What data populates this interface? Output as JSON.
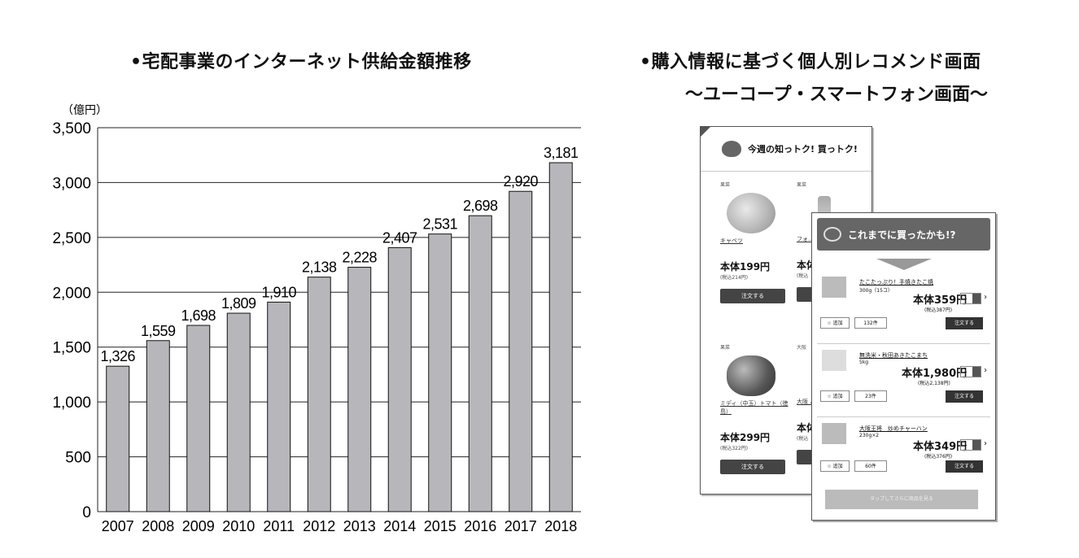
{
  "chart_data": {
    "type": "bar",
    "title": "•宅配事業のインターネット供給金額推移",
    "unit_label": "（億円）",
    "categories": [
      "2007",
      "2008",
      "2009",
      "2010",
      "2011",
      "2012",
      "2013",
      "2014",
      "2015",
      "2016",
      "2017",
      "2018"
    ],
    "values": [
      1326,
      1559,
      1698,
      1809,
      1910,
      2138,
      2228,
      2407,
      2531,
      2698,
      2920,
      3181
    ],
    "value_labels": [
      "1,326",
      "1,559",
      "1,698",
      "1,809",
      "1,910",
      "2,138",
      "2,228",
      "2,407",
      "2,531",
      "2,698",
      "2,920",
      "3,181"
    ],
    "ylim": [
      0,
      3500
    ],
    "yticks": [
      0,
      500,
      1000,
      1500,
      2000,
      2500,
      3000,
      3500
    ],
    "ytick_labels": [
      "0",
      "500",
      "1,000",
      "1,500",
      "2,000",
      "2,500",
      "3,000",
      "3,500"
    ],
    "grid": true,
    "bar_color": "#b7b7bb"
  },
  "right_panel": {
    "title": "•購入情報に基づく個人別レコメンド画面",
    "subtitle": "〜ユーコープ・スマートフォン画面〜",
    "screen1": {
      "header": "今週の知っトク! 買っトク!",
      "items": [
        {
          "tag": "果菜",
          "name": "キャベツ",
          "price": "本体199円",
          "taxed": "(税込214円)",
          "button": "注文する"
        },
        {
          "tag": "果菜",
          "name": "フォ… ガ",
          "price": "本体",
          "taxed": "(税込",
          "button": "注文する"
        },
        {
          "tag": "果菜",
          "name": "ミディ（中玉）トマト（徳島）",
          "price": "本体299円",
          "taxed": "(税込322円)",
          "button": "注文する"
        },
        {
          "tag": "大阪",
          "name": "大阪 パー… 炒め",
          "price": "本体",
          "taxed": "(税込",
          "button": "注文する"
        }
      ]
    },
    "screen2": {
      "header": "これまでに買ったかも!?",
      "rows": [
        {
          "name": "たこたっぷり！手焼きたこ焼",
          "sub": "300g（15コ）",
          "price": "本体359円",
          "taxed": "(税込387円)",
          "qty": "1",
          "add": "☆ 追加",
          "reviews": "132件",
          "order": "注文する"
        },
        {
          "name": "無洗米・秋田あきたこまち",
          "sub": "5kg",
          "price": "本体1,980円",
          "taxed": "(税込2,138円)",
          "qty": "1",
          "add": "☆ 追加",
          "reviews": "23件",
          "order": "注文する"
        },
        {
          "name": "大阪王将　炒めチャーハン",
          "sub": "230g×2",
          "price": "本体349円",
          "taxed": "(税込376円)",
          "qty": "1",
          "add": "☆ 追加",
          "reviews": "60件",
          "order": "注文する"
        }
      ],
      "more": "タップしてさらに商品を見る"
    }
  }
}
